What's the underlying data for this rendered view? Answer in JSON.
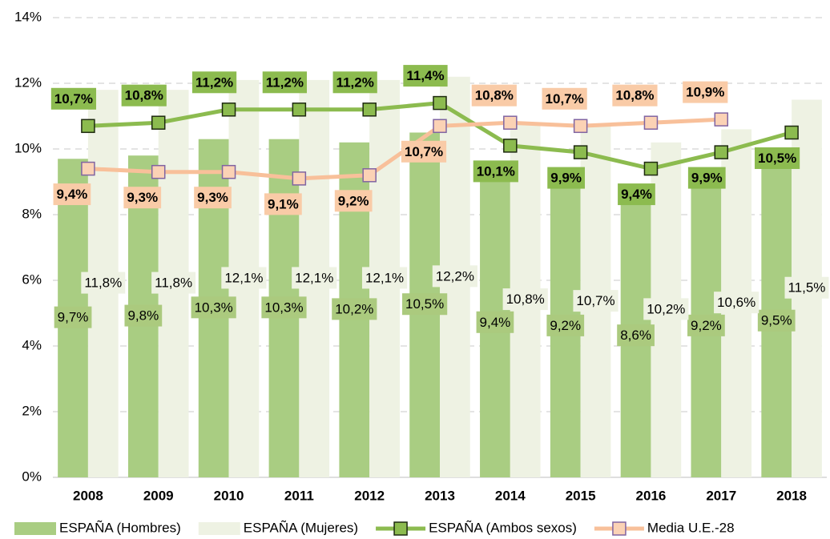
{
  "chart_data": {
    "type": "bar-line",
    "categories": [
      "2008",
      "2009",
      "2010",
      "2011",
      "2012",
      "2013",
      "2014",
      "2015",
      "2016",
      "2017",
      "2018"
    ],
    "series": [
      {
        "name": "ESPAÑA (Hombres)",
        "type": "bar",
        "color": "#a9cd82",
        "values": [
          9.7,
          9.8,
          10.3,
          10.3,
          10.2,
          10.5,
          9.4,
          9.2,
          8.6,
          9.2,
          9.5
        ],
        "value_labels": [
          "9,7%",
          "9,8%",
          "10,3%",
          "10,3%",
          "10,2%",
          "10,5%",
          "9,4%",
          "9,2%",
          "8,6%",
          "9,2%",
          "9,5%"
        ]
      },
      {
        "name": "ESPAÑA (Mujeres)",
        "type": "bar",
        "color": "#eef2e3",
        "values": [
          11.8,
          11.8,
          12.1,
          12.1,
          12.1,
          12.2,
          10.8,
          10.7,
          10.2,
          10.6,
          11.5
        ],
        "value_labels": [
          "11,8%",
          "11,8%",
          "12,1%",
          "12,1%",
          "12,1%",
          "12,2%",
          "10,8%",
          "10,7%",
          "10,2%",
          "10,6%",
          "11,5%"
        ]
      },
      {
        "name": "ESPAÑA (Ambos sexos)",
        "type": "line",
        "color": "#8cbb4f",
        "values": [
          10.7,
          10.8,
          11.2,
          11.2,
          11.2,
          11.4,
          10.1,
          9.9,
          9.4,
          9.9,
          10.5
        ],
        "value_labels": [
          "10,7%",
          "10,8%",
          "11,2%",
          "11,2%",
          "11,2%",
          "11,4%",
          "10,1%",
          "9,9%",
          "9,4%",
          "9,9%",
          "10,5%"
        ]
      },
      {
        "name": "Media U.E.-28",
        "type": "line",
        "color": "#f8c09a",
        "values": [
          9.4,
          9.3,
          9.3,
          9.1,
          9.2,
          10.7,
          10.8,
          10.7,
          10.8,
          10.9,
          null
        ],
        "value_labels": [
          "9,4%",
          "9,3%",
          "9,3%",
          "9,1%",
          "9,2%",
          "10,7%",
          "10,8%",
          "10,7%",
          "10,8%",
          "10,9%",
          null
        ]
      }
    ],
    "ylim": [
      0,
      14
    ],
    "yticks": [
      {
        "value": 0,
        "label": "0%"
      },
      {
        "value": 2,
        "label": "2%"
      },
      {
        "value": 4,
        "label": "4%"
      },
      {
        "value": 6,
        "label": "6%"
      },
      {
        "value": 8,
        "label": "8%"
      },
      {
        "value": 10,
        "label": "10%"
      },
      {
        "value": 12,
        "label": "12%"
      },
      {
        "value": 14,
        "label": "14%"
      }
    ],
    "grid": true,
    "legend": "bottom"
  }
}
